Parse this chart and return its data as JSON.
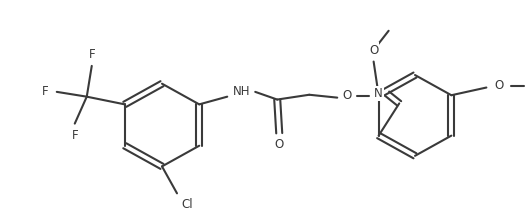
{
  "bg": "#ffffff",
  "lc": "#3a3a3a",
  "lw": 1.5,
  "fs": 8.5,
  "figw": 5.29,
  "figh": 2.11,
  "dpi": 100,
  "xlim": [
    0,
    529
  ],
  "ylim": [
    0,
    211
  ]
}
